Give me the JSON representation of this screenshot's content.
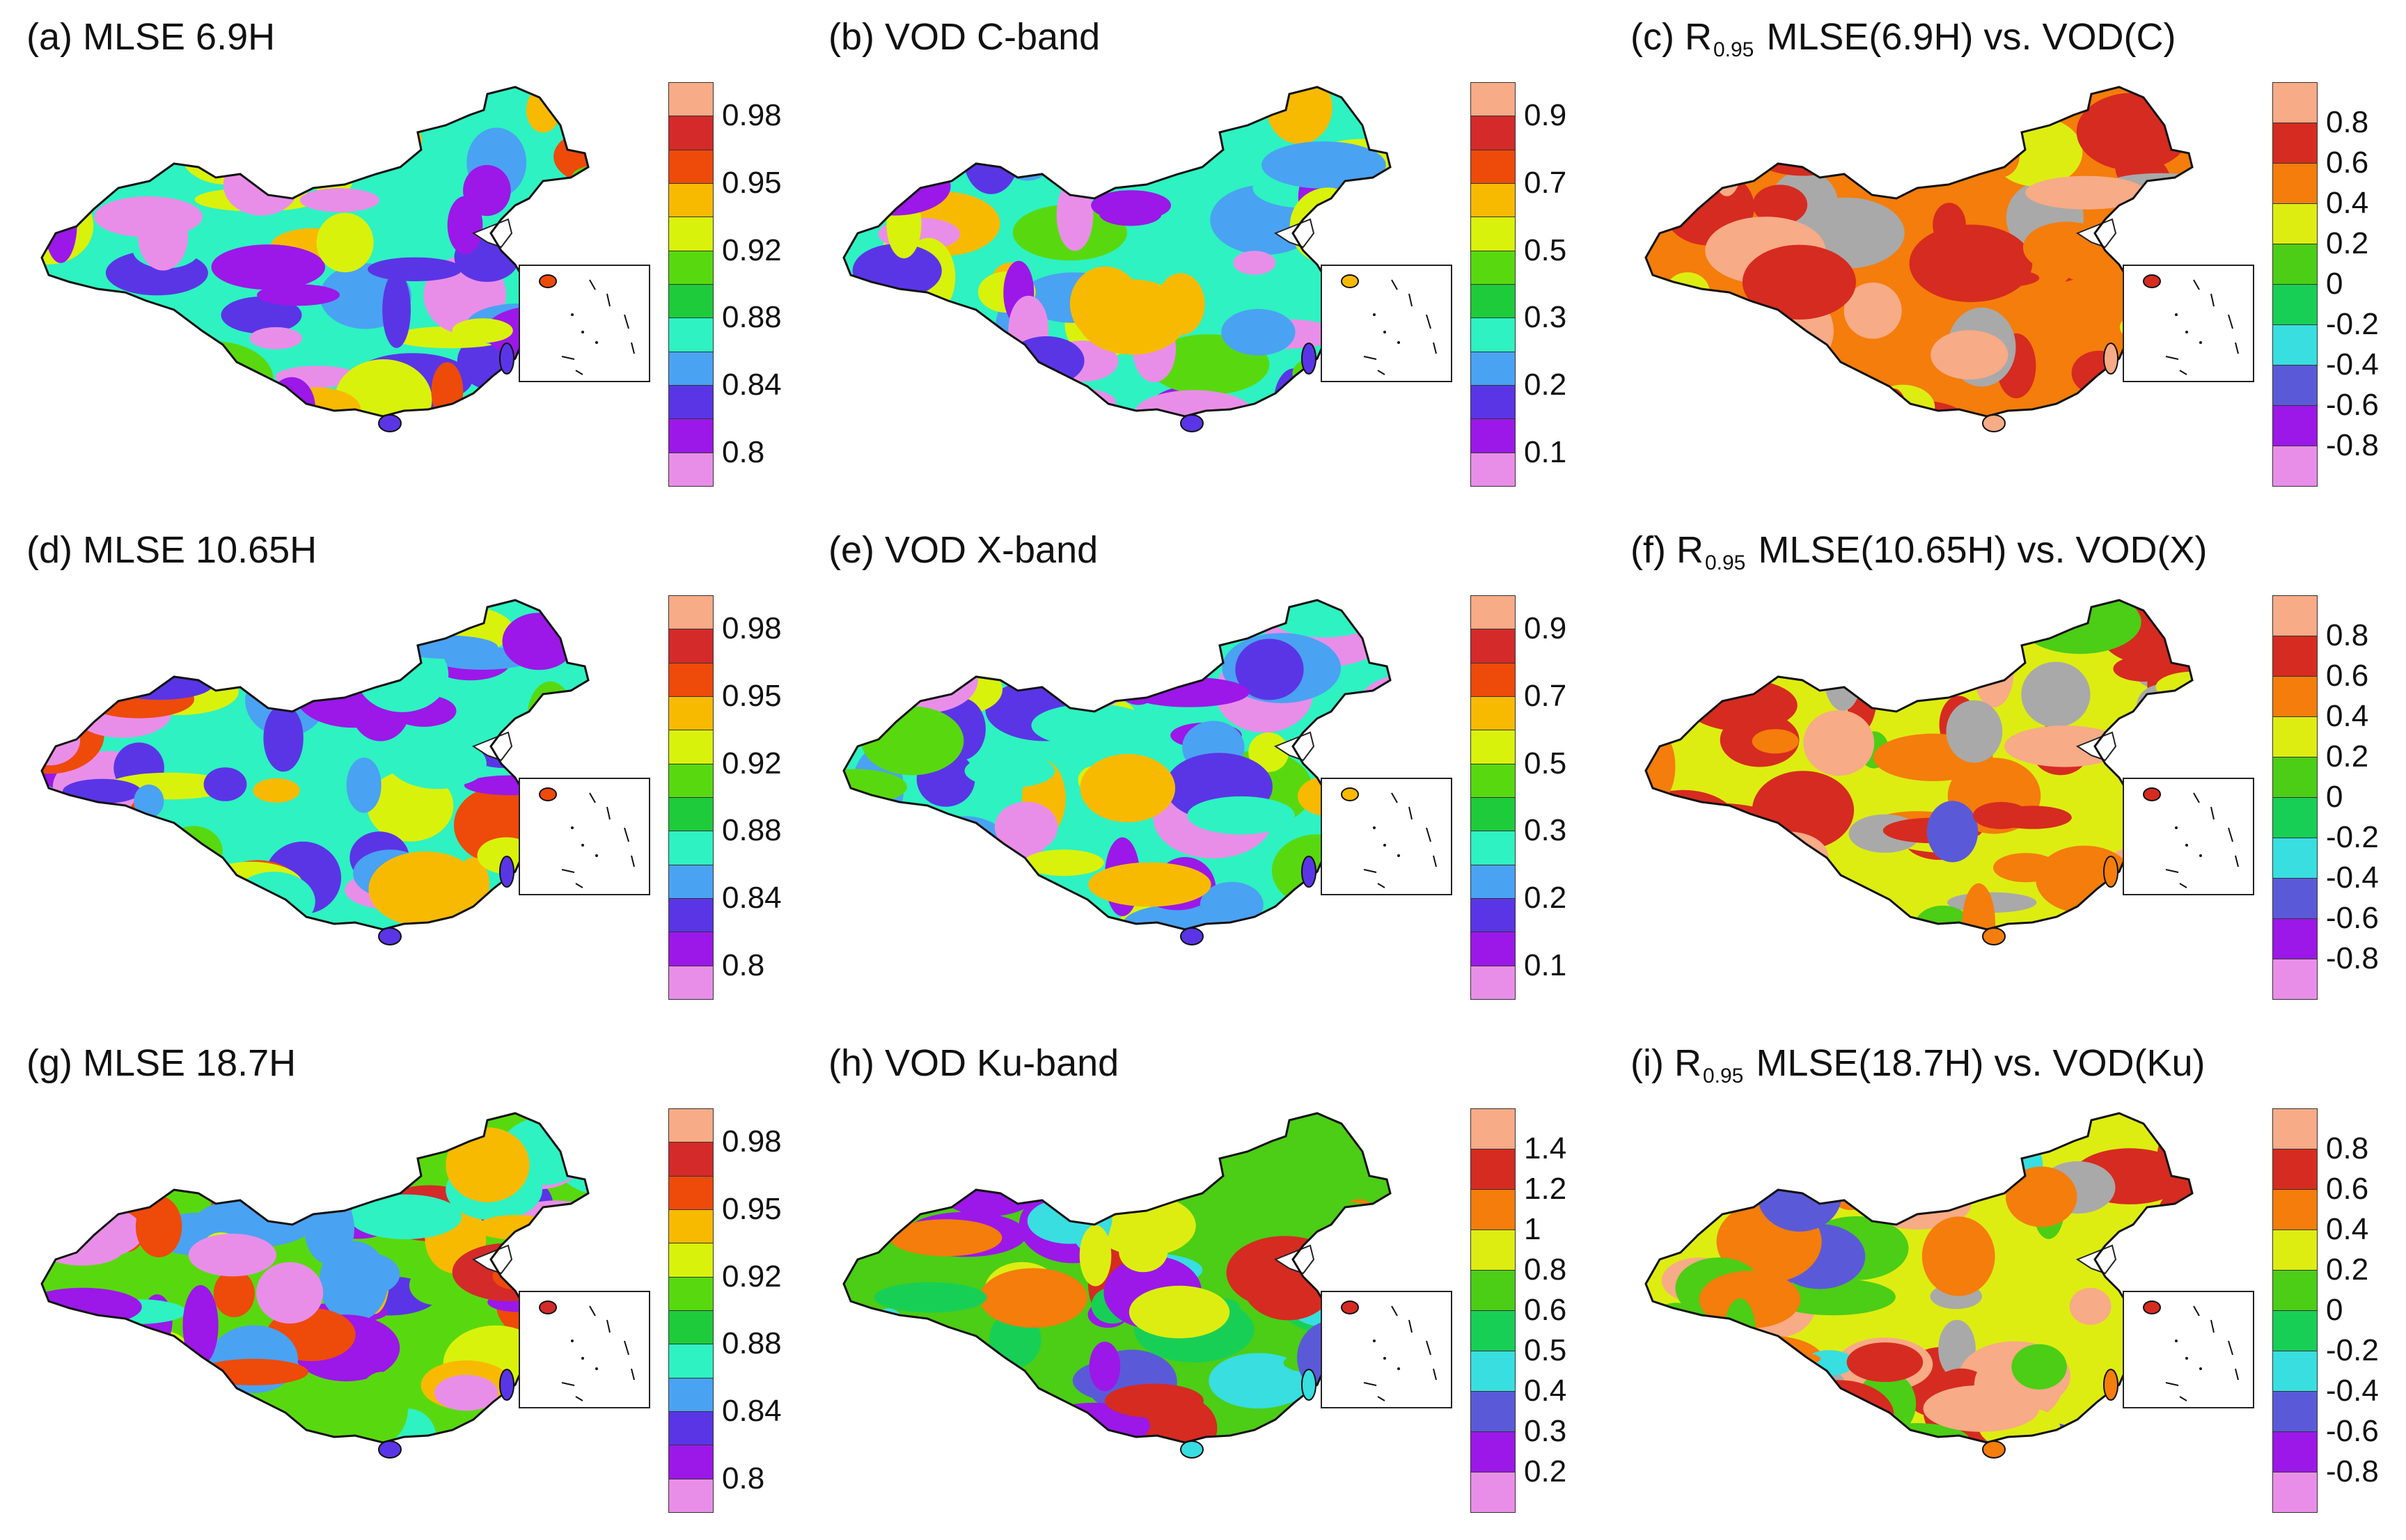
{
  "colors": {
    "mlse": [
      "#e98ee8",
      "#9b18e8",
      "#5a35e6",
      "#4aa2f2",
      "#2ef2c1",
      "#1ecb3b",
      "#58d90f",
      "#d9f20b",
      "#f8ba00",
      "#ee4a0a",
      "#d42a2a",
      "#f7ab86"
    ],
    "corr": [
      "#e98ee8",
      "#9b18e8",
      "#5a5ad8",
      "#38dee0",
      "#18cf55",
      "#4ccd16",
      "#dded12",
      "#f47d0b",
      "#d62b20",
      "#f7ab86"
    ],
    "ku": [
      "#e98ee8",
      "#9b18e8",
      "#5a5ad8",
      "#38dee0",
      "#18cf55",
      "#4ccd16",
      "#dded12",
      "#f47d0b",
      "#d62b20",
      "#f7ab86"
    ],
    "gray": "#a9a9a9"
  },
  "panels": [
    {
      "id": "a",
      "title": "(a) MLSE 6.9H",
      "scheme": "mlse",
      "ticks": [
        "0.98",
        "0.95",
        "0.92",
        "0.88",
        "0.84",
        "0.8"
      ],
      "n": 12,
      "palette": [
        "#e98ee8",
        "#9b18e8",
        "#5a35e6",
        "#4aa2f2",
        "#2ef2c1",
        "#58d90f",
        "#d9f20b",
        "#f8ba00",
        "#ee4a0a"
      ]
    },
    {
      "id": "b",
      "title": "(b) VOD C-band",
      "scheme": "mlse",
      "ticks": [
        "0.9",
        "0.7",
        "0.5",
        "0.3",
        "0.2",
        "0.1"
      ],
      "n": 12,
      "palette": [
        "#e98ee8",
        "#9b18e8",
        "#5a35e6",
        "#4aa2f2",
        "#2ef2c1",
        "#58d90f",
        "#d9f20b",
        "#f8ba00"
      ]
    },
    {
      "id": "c",
      "title_prefix": "(c) R",
      "title_sub": "0.95",
      "title_rest": "MLSE(6.9H) vs. VOD(C)",
      "scheme": "corr",
      "ticks": [
        "0.8",
        "0.6",
        "0.4",
        "0.2",
        "0",
        "-0.2",
        "-0.4",
        "-0.6",
        "-0.8"
      ],
      "n": 10,
      "palette": [
        "#d62b20",
        "#d62b20",
        "#f7ab86",
        "#f47d0b",
        "#a9a9a9",
        "#dded12",
        "#d62b20"
      ]
    },
    {
      "id": "d",
      "title": "(d) MLSE 10.65H",
      "scheme": "mlse",
      "ticks": [
        "0.98",
        "0.95",
        "0.92",
        "0.88",
        "0.84",
        "0.8"
      ],
      "n": 12,
      "palette": [
        "#e98ee8",
        "#9b18e8",
        "#5a35e6",
        "#4aa2f2",
        "#2ef2c1",
        "#58d90f",
        "#d9f20b",
        "#f8ba00",
        "#ee4a0a"
      ]
    },
    {
      "id": "e",
      "title": "(e) VOD X-band",
      "scheme": "mlse",
      "ticks": [
        "0.9",
        "0.7",
        "0.5",
        "0.3",
        "0.2",
        "0.1"
      ],
      "n": 12,
      "palette": [
        "#e98ee8",
        "#9b18e8",
        "#5a35e6",
        "#4aa2f2",
        "#2ef2c1",
        "#58d90f",
        "#d9f20b",
        "#f8ba00"
      ]
    },
    {
      "id": "f",
      "title_prefix": "(f) R",
      "title_sub": "0.95",
      "title_rest": "MLSE(10.65H) vs. VOD(X)",
      "scheme": "corr",
      "ticks": [
        "0.8",
        "0.6",
        "0.4",
        "0.2",
        "0",
        "-0.2",
        "-0.4",
        "-0.6",
        "-0.8"
      ],
      "n": 10,
      "palette": [
        "#d62b20",
        "#f7ab86",
        "#f47d0b",
        "#a9a9a9",
        "#dded12",
        "#4ccd16",
        "#5a5ad8",
        "#d62b20"
      ]
    },
    {
      "id": "g",
      "title": "(g) MLSE 18.7H",
      "scheme": "mlse",
      "ticks": [
        "0.98",
        "0.95",
        "0.92",
        "0.88",
        "0.84",
        "0.8"
      ],
      "n": 12,
      "palette": [
        "#e98ee8",
        "#9b18e8",
        "#5a35e6",
        "#4aa2f2",
        "#2ef2c1",
        "#58d90f",
        "#d9f20b",
        "#f8ba00",
        "#ee4a0a",
        "#d42a2a"
      ]
    },
    {
      "id": "h",
      "title": "(h) VOD Ku-band",
      "scheme": "ku",
      "ticks": [
        "1.4",
        "1.2",
        "1",
        "0.8",
        "0.6",
        "0.5",
        "0.4",
        "0.3",
        "0.2"
      ],
      "n": 10,
      "palette": [
        "#9b18e8",
        "#5a5ad8",
        "#38dee0",
        "#18cf55",
        "#4ccd16",
        "#dded12",
        "#f47d0b",
        "#d62b20"
      ]
    },
    {
      "id": "i",
      "title_prefix": "(i) R",
      "title_sub": "0.95",
      "title_rest": "MLSE(18.7H) vs. VOD(Ku)",
      "scheme": "corr",
      "ticks": [
        "0.8",
        "0.6",
        "0.4",
        "0.2",
        "0",
        "-0.2",
        "-0.4",
        "-0.6",
        "-0.8"
      ],
      "n": 10,
      "palette": [
        "#d62b20",
        "#f7ab86",
        "#f47d0b",
        "#a9a9a9",
        "#dded12",
        "#4ccd16",
        "#38dee0",
        "#5a5ad8",
        "#d62b20"
      ]
    }
  ]
}
